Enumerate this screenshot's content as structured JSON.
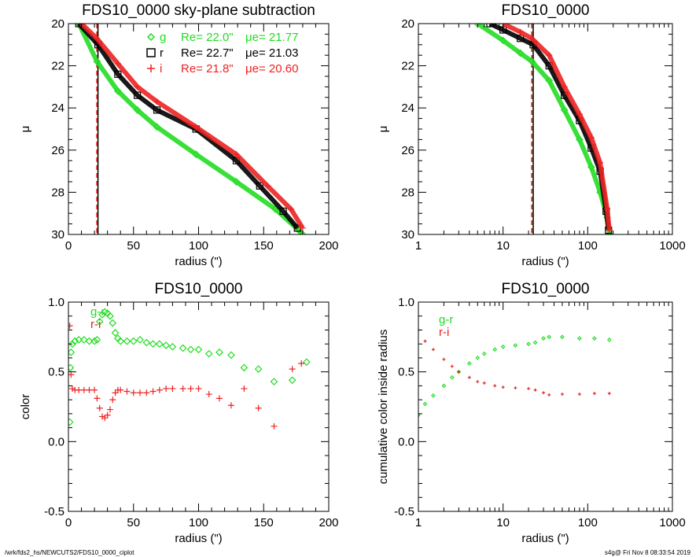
{
  "footer": {
    "left": "/wrk/fds2_hs/NEWCUTS2/FDS10_0000_ciplot",
    "right": "s4g@  Fri Nov  8 08:33:54 2019"
  },
  "colors": {
    "g": "#22dd22",
    "r": "#000000",
    "i": "#ee2222"
  },
  "chart_data": [
    {
      "type": "scatter",
      "title": "FDS10_0000 sky-plane subtraction",
      "xlabel": "radius (\")",
      "ylabel": "μ",
      "xlim": [
        0,
        200
      ],
      "ylim": [
        30,
        20
      ],
      "xscale": "linear",
      "xticks": [
        "0",
        "50",
        "100",
        "150",
        "200"
      ],
      "yticks": [
        "20",
        "22",
        "24",
        "26",
        "28",
        "30"
      ],
      "legend": [
        {
          "band": "g",
          "marker": "diamond",
          "Re": "Re=  22.0\"",
          "mue": "μe= 21.77"
        },
        {
          "band": "r",
          "marker": "square",
          "Re": "Re=  22.7\"",
          "mue": "μe= 21.03"
        },
        {
          "band": "i",
          "marker": "plus",
          "Re": "Re=  21.8\"",
          "mue": "μe= 20.60"
        }
      ],
      "vlines": [
        {
          "band": "g",
          "x": 22.0,
          "style": "dashed"
        },
        {
          "band": "r",
          "x": 22.7,
          "style": "solid"
        },
        {
          "band": "i",
          "x": 21.8,
          "style": "dashed"
        }
      ],
      "series": [
        {
          "band": "g",
          "x": [
            8,
            22,
            38,
            53,
            68,
            98,
            129,
            159,
            177,
            180
          ],
          "y": [
            20.0,
            21.8,
            23.2,
            24.1,
            24.9,
            26.2,
            27.5,
            28.8,
            29.8,
            30.0
          ]
        },
        {
          "band": "r",
          "x": [
            8,
            22.7,
            38,
            53,
            68,
            98,
            129,
            147,
            165,
            176
          ],
          "y": [
            20.0,
            21.0,
            22.4,
            23.4,
            24.1,
            25.0,
            26.5,
            27.7,
            28.9,
            29.7
          ]
        },
        {
          "band": "i",
          "x": [
            10,
            21.8,
            38,
            53,
            68,
            98,
            129,
            153,
            171,
            180
          ],
          "y": [
            20.0,
            20.7,
            21.9,
            23.0,
            23.7,
            24.9,
            26.2,
            27.7,
            28.8,
            29.7
          ]
        }
      ]
    },
    {
      "type": "scatter",
      "title": "FDS10_0000",
      "xlabel": "radius (\")",
      "ylabel": "μ",
      "xlim": [
        1,
        1000
      ],
      "ylim": [
        30,
        20
      ],
      "xscale": "log",
      "xticks": [
        "1",
        "10",
        "100",
        "1000"
      ],
      "yticks": [
        "20",
        "22",
        "24",
        "26",
        "28",
        "30"
      ],
      "vlines": [
        {
          "band": "g",
          "x": 22.0,
          "style": "dashed"
        },
        {
          "band": "r",
          "x": 22.7,
          "style": "solid"
        },
        {
          "band": "i",
          "x": 21.8,
          "style": "dashed"
        }
      ],
      "series": [
        {
          "band": "g",
          "x": [
            5,
            10,
            16,
            22,
            35,
            53,
            80,
            110,
            140,
            170,
            180
          ],
          "y": [
            20.0,
            20.8,
            21.4,
            21.8,
            22.7,
            24.1,
            25.5,
            26.8,
            28.0,
            29.2,
            30.0
          ]
        },
        {
          "band": "r",
          "x": [
            7,
            10,
            16,
            22.7,
            35,
            53,
            80,
            110,
            140,
            165,
            176
          ],
          "y": [
            20.0,
            20.3,
            20.7,
            21.0,
            22.0,
            23.4,
            24.6,
            25.9,
            27.0,
            28.9,
            29.8
          ]
        },
        {
          "band": "i",
          "x": [
            10,
            16,
            21.8,
            35,
            53,
            80,
            110,
            140,
            170,
            180
          ],
          "y": [
            20.0,
            20.4,
            20.7,
            21.5,
            23.0,
            24.3,
            25.4,
            26.6,
            28.8,
            29.8
          ]
        }
      ]
    },
    {
      "type": "scatter",
      "title": "FDS10_0000",
      "xlabel": "radius (\")",
      "ylabel": "color",
      "xlim": [
        0,
        200
      ],
      "ylim": [
        -0.5,
        1.0
      ],
      "xscale": "linear",
      "xticks": [
        "0",
        "50",
        "100",
        "150",
        "200"
      ],
      "yticks": [
        "-0.5",
        "0.0",
        "0.5",
        "1.0"
      ],
      "legend": [
        {
          "band": "g",
          "label": "g-r"
        },
        {
          "band": "i",
          "label": "r-i"
        }
      ],
      "series": [
        {
          "band": "g",
          "label": "g-r",
          "marker": "diamond",
          "x": [
            1,
            1.5,
            2,
            3,
            5,
            8,
            12,
            16,
            20,
            22,
            24,
            26,
            28,
            30,
            32,
            34,
            36,
            38,
            40,
            45,
            50,
            55,
            60,
            65,
            70,
            75,
            80,
            88,
            94,
            100,
            108,
            116,
            125,
            135,
            146,
            158,
            172,
            183
          ],
          "y": [
            0.14,
            0.53,
            0.64,
            0.7,
            0.72,
            0.73,
            0.73,
            0.72,
            0.72,
            0.73,
            0.86,
            0.91,
            0.93,
            0.92,
            0.9,
            0.85,
            0.78,
            0.74,
            0.72,
            0.72,
            0.72,
            0.73,
            0.71,
            0.7,
            0.7,
            0.69,
            0.68,
            0.67,
            0.66,
            0.66,
            0.63,
            0.64,
            0.62,
            0.53,
            0.52,
            0.43,
            0.44,
            0.57
          ]
        },
        {
          "band": "i",
          "label": "r-i",
          "marker": "plus",
          "x": [
            1,
            2,
            3,
            5,
            8,
            12,
            16,
            20,
            22,
            24,
            26,
            28,
            30,
            32,
            34,
            36,
            38,
            40,
            45,
            50,
            55,
            60,
            65,
            70,
            75,
            80,
            88,
            94,
            100,
            108,
            116,
            125,
            135,
            146,
            158,
            172,
            179
          ],
          "y": [
            0.83,
            0.48,
            0.38,
            0.37,
            0.37,
            0.37,
            0.37,
            0.37,
            0.31,
            0.24,
            0.18,
            0.17,
            0.19,
            0.23,
            0.3,
            0.35,
            0.37,
            0.37,
            0.36,
            0.35,
            0.35,
            0.35,
            0.36,
            0.37,
            0.38,
            0.38,
            0.38,
            0.38,
            0.38,
            0.34,
            0.31,
            0.26,
            0.38,
            0.24,
            0.11,
            0.52,
            0.56
          ]
        }
      ]
    },
    {
      "type": "scatter",
      "title": "FDS10_0000",
      "xlabel": "radius (\")",
      "ylabel": "cumulative color inside radius",
      "xlim": [
        1,
        1000
      ],
      "ylim": [
        -0.5,
        1.0
      ],
      "xscale": "log",
      "xticks": [
        "1",
        "10",
        "100",
        "1000"
      ],
      "yticks": [
        "-0.5",
        "0.0",
        "0.5",
        "1.0"
      ],
      "legend": [
        {
          "band": "g",
          "label": "g-r"
        },
        {
          "band": "i",
          "label": "r-i"
        }
      ],
      "series": [
        {
          "band": "g",
          "label": "g-r",
          "marker": "diamond",
          "x": [
            1,
            1.2,
            1.5,
            2,
            2.5,
            3,
            4,
            5,
            6,
            8,
            10,
            14,
            20,
            24,
            30,
            35,
            50,
            80,
            120,
            180
          ],
          "y": [
            0.19,
            0.27,
            0.33,
            0.4,
            0.46,
            0.5,
            0.56,
            0.6,
            0.63,
            0.66,
            0.68,
            0.69,
            0.7,
            0.71,
            0.74,
            0.75,
            0.75,
            0.74,
            0.74,
            0.73
          ]
        },
        {
          "band": "i",
          "label": "r-i",
          "marker": "plus",
          "x": [
            1,
            1.2,
            1.5,
            2,
            2.5,
            3,
            4,
            5,
            6,
            8,
            10,
            14,
            20,
            24,
            30,
            35,
            50,
            80,
            120,
            180
          ],
          "y": [
            0.8,
            0.72,
            0.66,
            0.59,
            0.54,
            0.5,
            0.46,
            0.43,
            0.42,
            0.4,
            0.39,
            0.385,
            0.38,
            0.37,
            0.35,
            0.335,
            0.34,
            0.34,
            0.345,
            0.345
          ]
        }
      ]
    }
  ]
}
